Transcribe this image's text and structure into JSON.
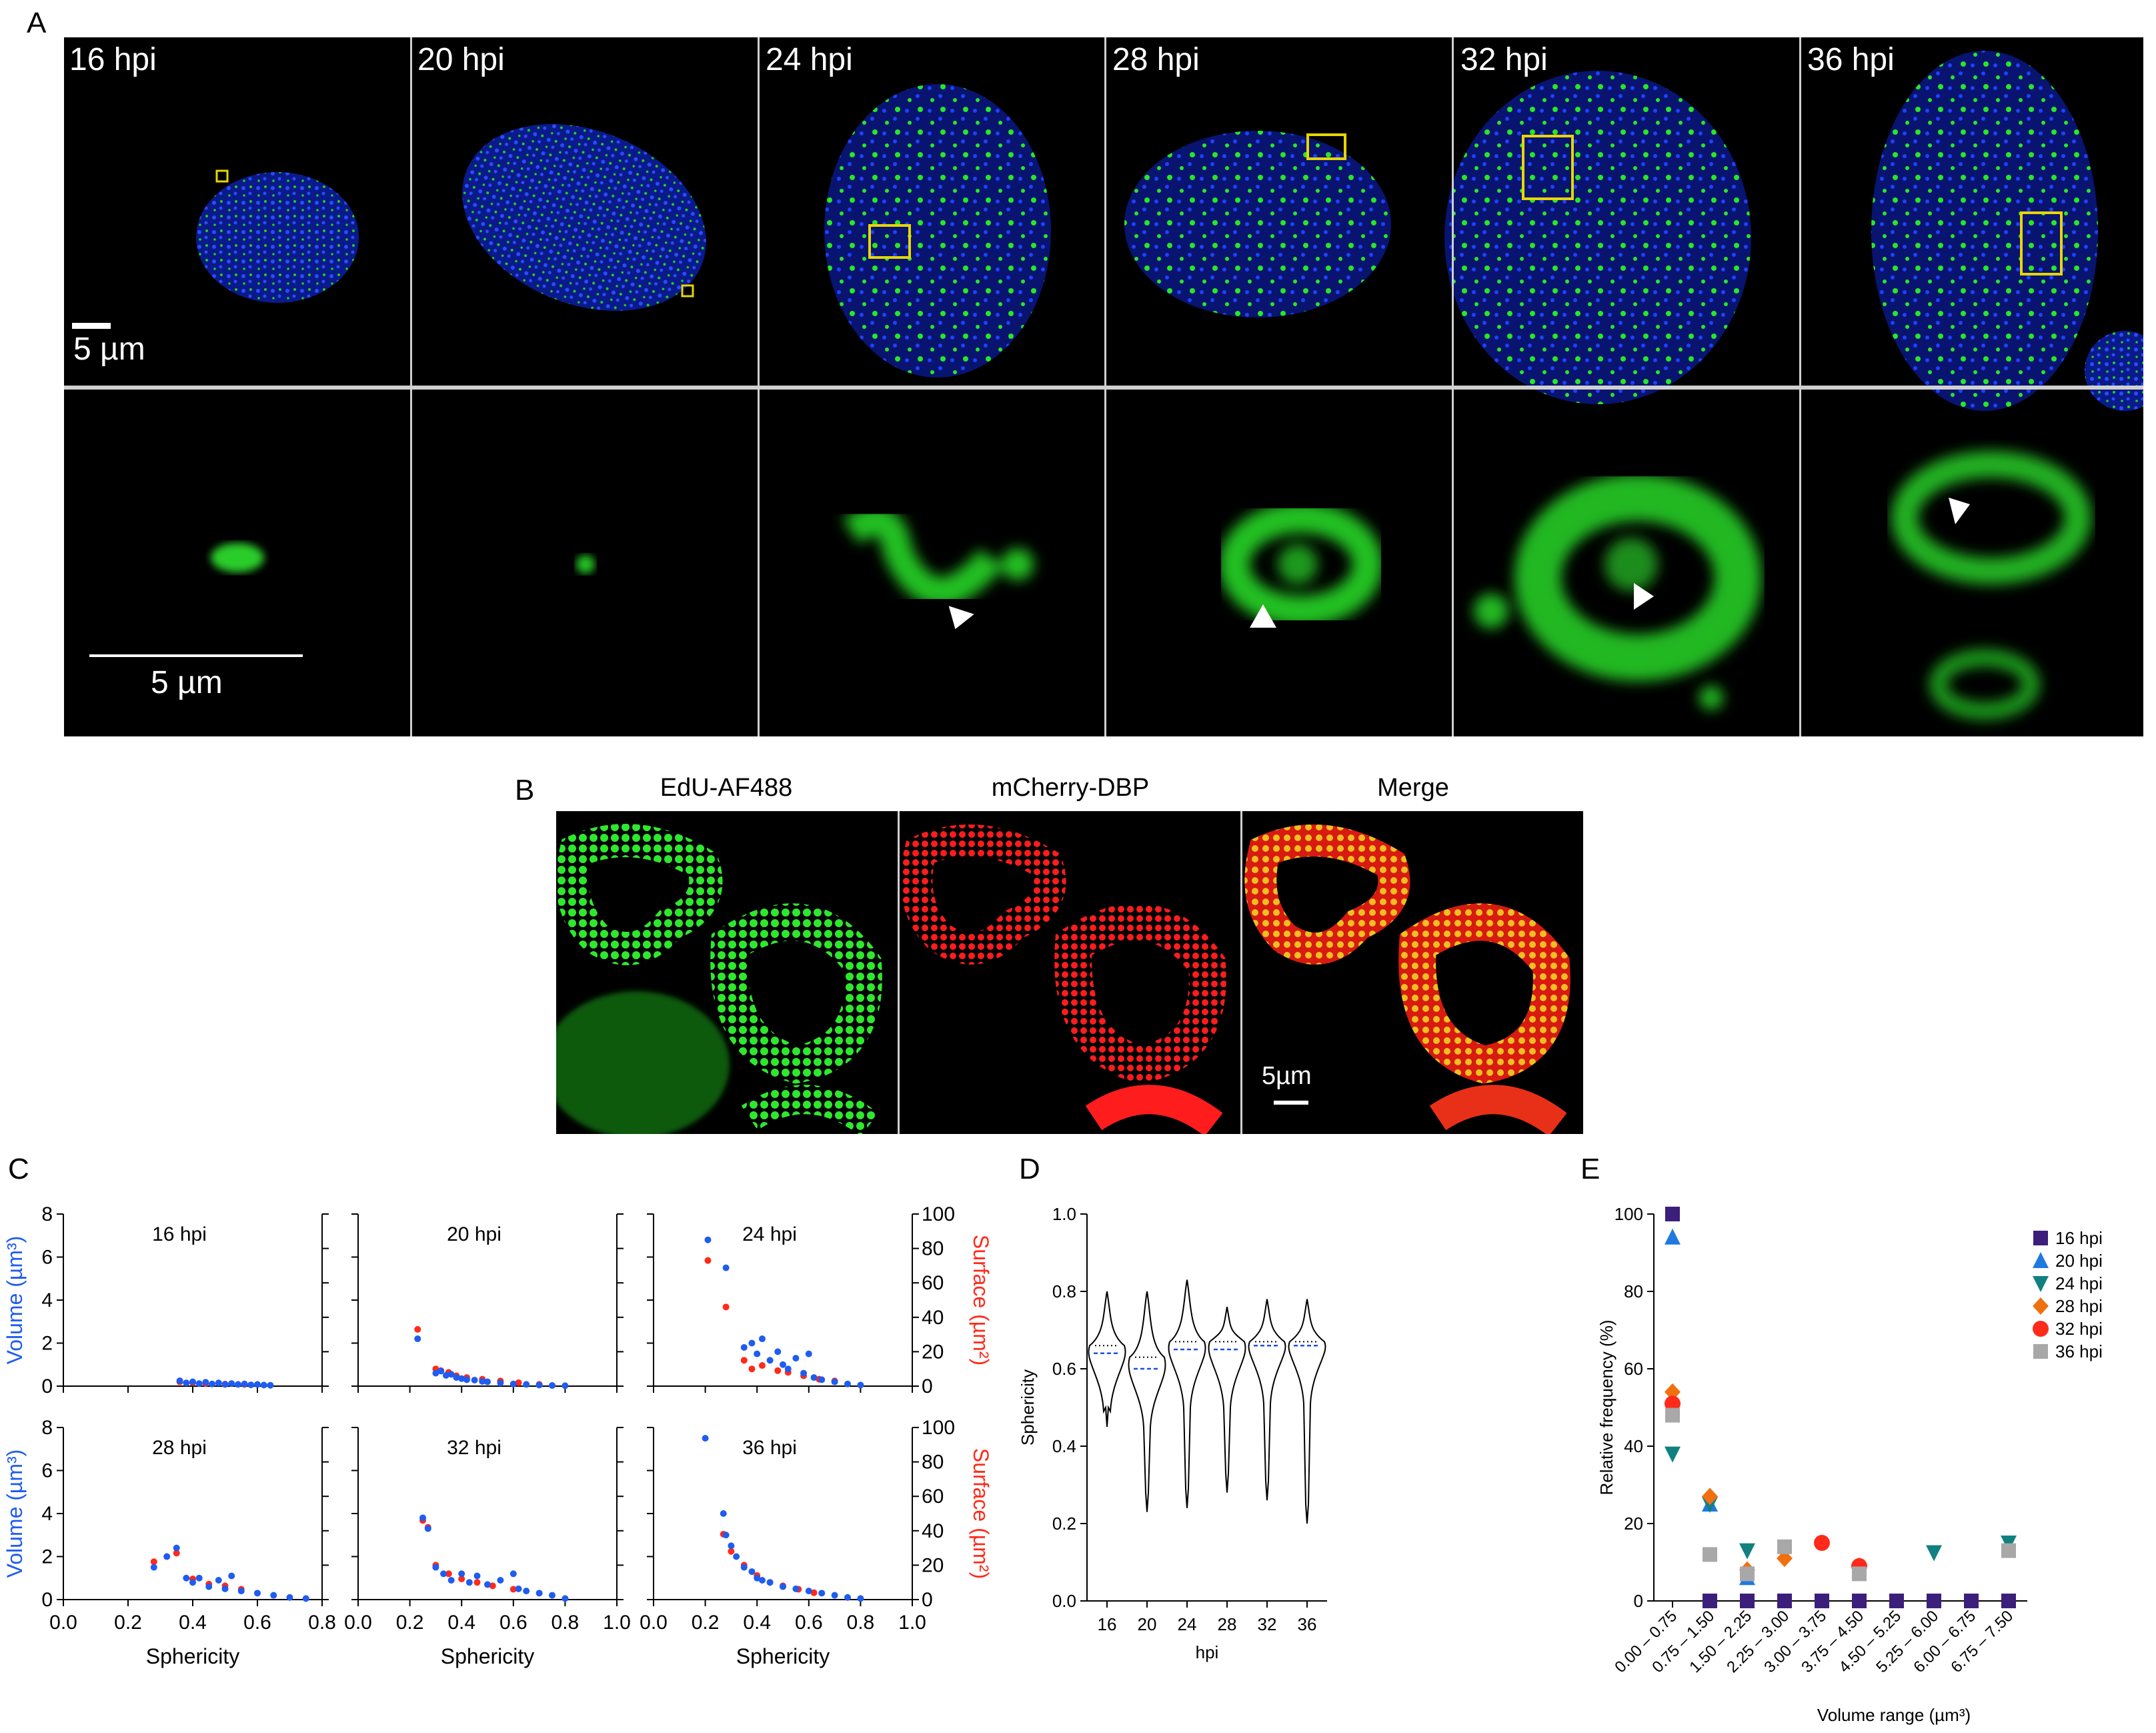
{
  "panels": {
    "a": "A",
    "b": "B",
    "c": "C",
    "d": "D",
    "e": "E"
  },
  "panel_a": {
    "timepoints": [
      "16 hpi",
      "20 hpi",
      "24 hpi",
      "28 hpi",
      "32 hpi",
      "36 hpi"
    ],
    "scale_top": "5 µm",
    "scale_bottom": "5 µm"
  },
  "panel_b": {
    "channels": [
      "EdU-AF488",
      "mCherry-DBP",
      "Merge"
    ],
    "scale": "5µm"
  },
  "colors": {
    "nucleus_blue": "#1f3cff",
    "edu_green": "#22e022",
    "dbp_red": "#ff1a1a",
    "roi_yellow": "#e8d600",
    "volume_blue": "#1f5cf0",
    "surface_red": "#ff2a1a"
  },
  "chart_data": [
    {
      "type": "scatter",
      "panel": "C",
      "xlabel": "Sphericity",
      "ylabel_left": "Volume (µm³)",
      "ylabel_right": "Surface (µm²)",
      "subplots": [
        {
          "title": "16 hpi",
          "xlim": [
            0,
            0.8
          ],
          "xticks": [
            "0.0",
            "0.2",
            "0.4",
            "0.6",
            "0.8"
          ],
          "ylim_left": [
            0,
            8
          ],
          "ylim_right": [
            0,
            100
          ],
          "series": [
            {
              "name": "Volume",
              "points": [
                [
                  0.36,
                  0.25
                ],
                [
                  0.38,
                  0.15
                ],
                [
                  0.4,
                  0.2
                ],
                [
                  0.42,
                  0.12
                ],
                [
                  0.44,
                  0.18
                ],
                [
                  0.46,
                  0.1
                ],
                [
                  0.48,
                  0.15
                ],
                [
                  0.5,
                  0.08
                ],
                [
                  0.52,
                  0.12
                ],
                [
                  0.54,
                  0.08
                ],
                [
                  0.56,
                  0.1
                ],
                [
                  0.58,
                  0.06
                ],
                [
                  0.6,
                  0.08
                ],
                [
                  0.62,
                  0.05
                ],
                [
                  0.64,
                  0.04
                ]
              ]
            },
            {
              "name": "Surface",
              "points": [
                [
                  0.36,
                  2.5
                ],
                [
                  0.4,
                  2.0
                ],
                [
                  0.44,
                  1.5
                ],
                [
                  0.5,
                  1.2
                ],
                [
                  0.56,
                  1.0
                ]
              ]
            }
          ]
        },
        {
          "title": "20 hpi",
          "xlim": [
            0,
            1.0
          ],
          "xticks": [
            "0.0",
            "0.2",
            "0.4",
            "0.6",
            "0.8",
            "1.0"
          ],
          "ylim_left": [
            0,
            8
          ],
          "ylim_right": [
            0,
            100
          ],
          "series": [
            {
              "name": "Volume",
              "points": [
                [
                  0.23,
                  2.2
                ],
                [
                  0.3,
                  0.6
                ],
                [
                  0.32,
                  0.7
                ],
                [
                  0.34,
                  0.5
                ],
                [
                  0.36,
                  0.55
                ],
                [
                  0.38,
                  0.4
                ],
                [
                  0.4,
                  0.35
                ],
                [
                  0.42,
                  0.3
                ],
                [
                  0.45,
                  0.28
                ],
                [
                  0.48,
                  0.22
                ],
                [
                  0.5,
                  0.2
                ],
                [
                  0.55,
                  0.15
                ],
                [
                  0.6,
                  0.1
                ],
                [
                  0.65,
                  0.08
                ],
                [
                  0.7,
                  0.05
                ],
                [
                  0.75,
                  0.03
                ],
                [
                  0.8,
                  0.02
                ]
              ]
            },
            {
              "name": "Surface",
              "points": [
                [
                  0.23,
                  33
                ],
                [
                  0.3,
                  10
                ],
                [
                  0.32,
                  9
                ],
                [
                  0.35,
                  8
                ],
                [
                  0.38,
                  6
                ],
                [
                  0.42,
                  5
                ],
                [
                  0.48,
                  4
                ],
                [
                  0.55,
                  3
                ],
                [
                  0.62,
                  2
                ],
                [
                  0.7,
                  1
                ]
              ]
            }
          ]
        },
        {
          "title": "24 hpi",
          "xlim": [
            0,
            1.0
          ],
          "xticks": [
            "0.0",
            "0.2",
            "0.4",
            "0.6",
            "0.8",
            "1.0"
          ],
          "ylim_left": [
            0,
            8
          ],
          "ylim_right": [
            0,
            100
          ],
          "series": [
            {
              "name": "Volume",
              "points": [
                [
                  0.21,
                  6.8
                ],
                [
                  0.28,
                  5.5
                ],
                [
                  0.35,
                  1.8
                ],
                [
                  0.38,
                  2.0
                ],
                [
                  0.4,
                  1.5
                ],
                [
                  0.42,
                  2.2
                ],
                [
                  0.45,
                  1.2
                ],
                [
                  0.48,
                  1.6
                ],
                [
                  0.5,
                  1.0
                ],
                [
                  0.52,
                  0.8
                ],
                [
                  0.55,
                  1.3
                ],
                [
                  0.58,
                  0.6
                ],
                [
                  0.6,
                  1.5
                ],
                [
                  0.62,
                  0.4
                ],
                [
                  0.65,
                  0.3
                ],
                [
                  0.7,
                  0.2
                ],
                [
                  0.75,
                  0.1
                ],
                [
                  0.8,
                  0.05
                ]
              ]
            },
            {
              "name": "Surface",
              "points": [
                [
                  0.21,
                  73
                ],
                [
                  0.28,
                  46
                ],
                [
                  0.35,
                  15
                ],
                [
                  0.38,
                  10
                ],
                [
                  0.42,
                  12
                ],
                [
                  0.48,
                  9
                ],
                [
                  0.52,
                  8
                ],
                [
                  0.58,
                  6
                ],
                [
                  0.64,
                  4
                ],
                [
                  0.7,
                  3
                ]
              ]
            }
          ]
        },
        {
          "title": "28 hpi",
          "xlim": [
            0,
            0.8
          ],
          "xticks": [
            "0.0",
            "0.2",
            "0.4",
            "0.6",
            "0.8"
          ],
          "ylim_left": [
            0,
            8
          ],
          "ylim_right": [
            0,
            100
          ],
          "series": [
            {
              "name": "Volume",
              "points": [
                [
                  0.28,
                  1.5
                ],
                [
                  0.32,
                  2.0
                ],
                [
                  0.35,
                  2.4
                ],
                [
                  0.38,
                  1.0
                ],
                [
                  0.4,
                  0.8
                ],
                [
                  0.42,
                  1.0
                ],
                [
                  0.45,
                  0.6
                ],
                [
                  0.48,
                  0.9
                ],
                [
                  0.5,
                  0.5
                ],
                [
                  0.52,
                  1.1
                ],
                [
                  0.55,
                  0.4
                ],
                [
                  0.6,
                  0.3
                ],
                [
                  0.65,
                  0.2
                ],
                [
                  0.7,
                  0.1
                ],
                [
                  0.75,
                  0.05
                ]
              ]
            },
            {
              "name": "Surface",
              "points": [
                [
                  0.28,
                  22
                ],
                [
                  0.32,
                  25
                ],
                [
                  0.35,
                  27
                ],
                [
                  0.4,
                  12
                ],
                [
                  0.45,
                  9
                ],
                [
                  0.5,
                  8
                ],
                [
                  0.55,
                  6
                ]
              ]
            }
          ]
        },
        {
          "title": "32 hpi",
          "xlim": [
            0,
            1.0
          ],
          "xticks": [
            "0.0",
            "0.2",
            "0.4",
            "0.6",
            "0.8",
            "1.0"
          ],
          "ylim_left": [
            0,
            8
          ],
          "ylim_right": [
            0,
            100
          ],
          "series": [
            {
              "name": "Volume",
              "points": [
                [
                  0.25,
                  3.8
                ],
                [
                  0.27,
                  3.3
                ],
                [
                  0.3,
                  1.5
                ],
                [
                  0.33,
                  1.2
                ],
                [
                  0.36,
                  0.9
                ],
                [
                  0.4,
                  1.2
                ],
                [
                  0.43,
                  0.8
                ],
                [
                  0.46,
                  1.1
                ],
                [
                  0.5,
                  0.7
                ],
                [
                  0.55,
                  0.9
                ],
                [
                  0.6,
                  1.2
                ],
                [
                  0.62,
                  0.5
                ],
                [
                  0.65,
                  0.4
                ],
                [
                  0.7,
                  0.3
                ],
                [
                  0.75,
                  0.2
                ],
                [
                  0.8,
                  0.05
                ]
              ]
            },
            {
              "name": "Surface",
              "points": [
                [
                  0.25,
                  46
                ],
                [
                  0.27,
                  42
                ],
                [
                  0.3,
                  20
                ],
                [
                  0.35,
                  15
                ],
                [
                  0.4,
                  12
                ],
                [
                  0.46,
                  10
                ],
                [
                  0.52,
                  8
                ],
                [
                  0.6,
                  6
                ]
              ]
            }
          ]
        },
        {
          "title": "36 hpi",
          "xlim": [
            0,
            1.0
          ],
          "xticks": [
            "0.0",
            "0.2",
            "0.4",
            "0.6",
            "0.8",
            "1.0"
          ],
          "ylim_left": [
            0,
            8
          ],
          "ylim_right": [
            0,
            100
          ],
          "series": [
            {
              "name": "Volume",
              "points": [
                [
                  0.2,
                  7.5
                ],
                [
                  0.27,
                  4.0
                ],
                [
                  0.28,
                  3.0
                ],
                [
                  0.3,
                  2.5
                ],
                [
                  0.32,
                  2.0
                ],
                [
                  0.35,
                  1.5
                ],
                [
                  0.38,
                  1.3
                ],
                [
                  0.4,
                  1.0
                ],
                [
                  0.42,
                  0.9
                ],
                [
                  0.45,
                  0.8
                ],
                [
                  0.5,
                  0.6
                ],
                [
                  0.55,
                  0.5
                ],
                [
                  0.6,
                  0.4
                ],
                [
                  0.65,
                  0.3
                ],
                [
                  0.7,
                  0.2
                ],
                [
                  0.75,
                  0.1
                ],
                [
                  0.8,
                  0.05
                ]
              ]
            },
            {
              "name": "Surface",
              "points": [
                [
                  0.27,
                  38
                ],
                [
                  0.3,
                  28
                ],
                [
                  0.35,
                  20
                ],
                [
                  0.4,
                  14
                ],
                [
                  0.45,
                  10
                ],
                [
                  0.5,
                  8
                ],
                [
                  0.56,
                  6
                ],
                [
                  0.62,
                  4
                ]
              ]
            }
          ]
        }
      ]
    },
    {
      "type": "violin",
      "panel": "D",
      "xlabel": "hpi",
      "ylabel": "Sphericity",
      "ylim": [
        0,
        1.0
      ],
      "yticks": [
        "0.0",
        "0.2",
        "0.4",
        "0.6",
        "0.8",
        "1.0"
      ],
      "categories": [
        "16",
        "20",
        "24",
        "28",
        "32",
        "36"
      ],
      "median": [
        0.64,
        0.6,
        0.65,
        0.65,
        0.66,
        0.66
      ],
      "quartile_upper": [
        0.66,
        0.63,
        0.67,
        0.67,
        0.67,
        0.67
      ],
      "min": [
        0.45,
        0.23,
        0.24,
        0.28,
        0.26,
        0.2
      ],
      "max": [
        0.8,
        0.8,
        0.83,
        0.76,
        0.78,
        0.78
      ]
    },
    {
      "type": "scatter",
      "panel": "E",
      "xlabel": "Volume range (µm³)",
      "ylabel": "Relative frequency (%)",
      "ylim": [
        0,
        100
      ],
      "yticks": [
        "0",
        "20",
        "40",
        "60",
        "80",
        "100"
      ],
      "categories": [
        "0.00 – 0.75",
        "0.75 – 1.50",
        "1.50 – 2.25",
        "2.25 – 3.00",
        "3.00 – 3.75",
        "3.75 – 4.50",
        "4.50 – 5.25",
        "5.25 – 6.00",
        "6.00 – 6.75",
        "6.75 – 7.50"
      ],
      "series": [
        {
          "name": "16 hpi",
          "marker": "square",
          "color": "#3b1f7a",
          "values": [
            100,
            0,
            0,
            0,
            0,
            0,
            0,
            0,
            0,
            0
          ]
        },
        {
          "name": "20 hpi",
          "marker": "triangle-up",
          "color": "#1f7ae0",
          "values": [
            94,
            25,
            6,
            null,
            null,
            null,
            null,
            null,
            null,
            null
          ]
        },
        {
          "name": "24 hpi",
          "marker": "triangle-down",
          "color": "#118080",
          "values": [
            38,
            25,
            13,
            null,
            null,
            null,
            null,
            12.5,
            null,
            15
          ]
        },
        {
          "name": "28 hpi",
          "marker": "diamond",
          "color": "#f07010",
          "values": [
            54,
            27,
            8,
            11,
            null,
            9,
            null,
            null,
            null,
            null
          ]
        },
        {
          "name": "32 hpi",
          "marker": "circle",
          "color": "#ff2a1a",
          "values": [
            51,
            null,
            null,
            null,
            15,
            9,
            null,
            null,
            null,
            null
          ]
        },
        {
          "name": "36 hpi",
          "marker": "square",
          "color": "#a8a8a8",
          "values": [
            48,
            12,
            7,
            14,
            null,
            7,
            null,
            null,
            null,
            13
          ]
        }
      ]
    }
  ]
}
